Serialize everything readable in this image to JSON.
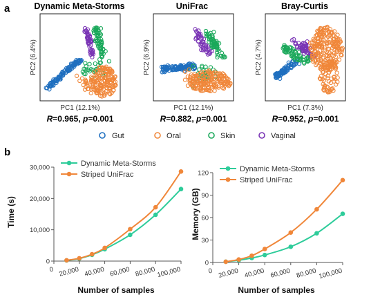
{
  "panel_a": {
    "letter": "a",
    "plots": [
      {
        "title": "Dynamic Meta-Storms",
        "xlabel": "PC1 (12.1%)",
        "ylabel": "PC2 (6.4%)",
        "stat_r": "0.965",
        "stat_p": "0.001"
      },
      {
        "title": "UniFrac",
        "xlabel": "PC1 (12.1%)",
        "ylabel": "PC2 (6.9%)",
        "stat_r": "0.882",
        "stat_p": "0.001"
      },
      {
        "title": "Bray-Curtis",
        "xlabel": "PC1 (7.3%)",
        "ylabel": "PC2 (4.7%)",
        "stat_r": "0.952",
        "stat_p": "0.001"
      }
    ],
    "stat_r_label": "R",
    "stat_p_label": "p",
    "legend": [
      {
        "name": "Gut",
        "color": "#1f6fbf"
      },
      {
        "name": "Oral",
        "color": "#f0873a"
      },
      {
        "name": "Skin",
        "color": "#1aa85a"
      },
      {
        "name": "Vaginal",
        "color": "#7a35b5"
      }
    ]
  },
  "panel_b": {
    "letter": "b"
  },
  "chart_data": [
    {
      "type": "line",
      "xlabel": "Number of samples",
      "ylabel": "Time (s)",
      "x": [
        10000,
        20000,
        30000,
        40000,
        60000,
        80000,
        100000
      ],
      "x_tick_labels": [
        "0",
        "20,000",
        "40,000",
        "60,000",
        "80,000",
        "100,000"
      ],
      "x_ticks": [
        0,
        20000,
        40000,
        60000,
        80000,
        100000
      ],
      "xlim": [
        0,
        100000
      ],
      "y_tick_labels": [
        "0",
        "10,000",
        "20,000",
        "30,000"
      ],
      "y_ticks": [
        0,
        10000,
        20000,
        30000
      ],
      "ylim": [
        0,
        30000
      ],
      "legend_position": "top-left",
      "series": [
        {
          "name": "Dynamic Meta-Storms",
          "color": "#2ecc9a",
          "values": [
            200,
            800,
            2000,
            3800,
            8400,
            14800,
            23000
          ]
        },
        {
          "name": "Striped UniFrac",
          "color": "#f0873a",
          "values": [
            250,
            900,
            2200,
            4200,
            10200,
            17200,
            28600
          ]
        }
      ]
    },
    {
      "type": "line",
      "xlabel": "Number of samples",
      "ylabel": "Memory (GB)",
      "x": [
        10000,
        20000,
        30000,
        40000,
        60000,
        80000,
        100000
      ],
      "x_tick_labels": [
        "0",
        "20,000",
        "40,000",
        "60,000",
        "80,000",
        "100,000"
      ],
      "x_ticks": [
        0,
        20000,
        40000,
        60000,
        80000,
        100000
      ],
      "xlim": [
        0,
        100000
      ],
      "y_tick_labels": [
        "0",
        "30",
        "60",
        "90",
        "120"
      ],
      "y_ticks": [
        0,
        30,
        60,
        90,
        120
      ],
      "ylim": [
        0,
        120
      ],
      "legend_position": "top-left",
      "series": [
        {
          "name": "Dynamic Meta-Storms",
          "color": "#2ecc9a",
          "values": [
            1,
            3,
            6,
            10,
            21,
            39,
            65
          ]
        },
        {
          "name": "Striped UniFrac",
          "color": "#f0873a",
          "values": [
            1,
            4,
            9,
            18,
            40,
            71,
            110
          ]
        }
      ]
    }
  ]
}
